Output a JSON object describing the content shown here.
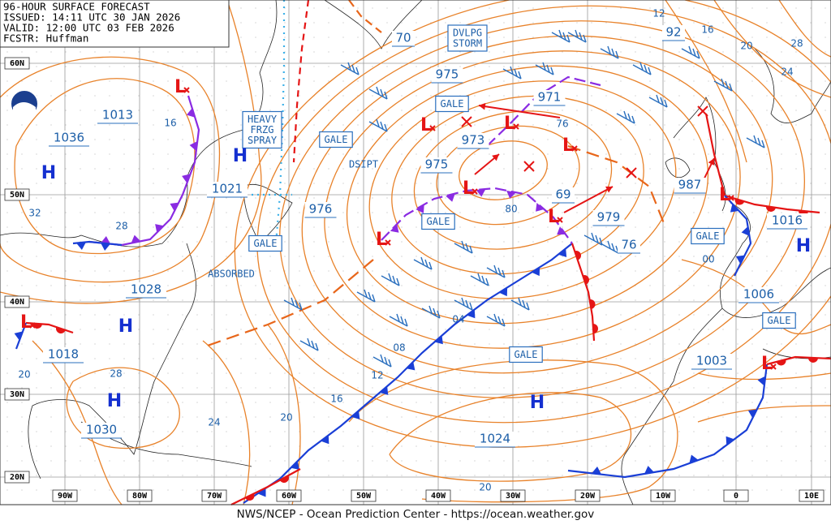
{
  "header": {
    "lines": [
      "96-HOUR SURFACE FORECAST",
      "ISSUED: 14:11 UTC 30 JAN 2026",
      "VALID: 12:00 UTC 03 FEB 2026",
      "FCSTR: Huffman"
    ]
  },
  "pressure_labels": [
    "1013",
    "1036",
    "1021",
    "976",
    "975",
    "973",
    "975",
    "971",
    "69",
    "979",
    "76",
    "987",
    "1016",
    "1006",
    "1003",
    "1024",
    "1030",
    "1018",
    "1028",
    "70",
    "92"
  ],
  "boxed_labels": [
    [
      "HEAVY",
      "FRZG",
      "SPRAY"
    ],
    [
      "DVLPG",
      "STORM"
    ],
    [
      "GALE"
    ],
    [
      "GALE"
    ],
    [
      "GALE"
    ],
    [
      "GALE"
    ],
    [
      "GALE"
    ],
    [
      "GALE"
    ],
    [
      "GALE"
    ]
  ],
  "notes": [
    "DSIPT",
    "ABSORBED"
  ],
  "isobar_labels": [
    "16",
    "32",
    "28",
    "20",
    "28",
    "24",
    "20",
    "16",
    "12",
    "08",
    "04",
    "80",
    "76",
    "00",
    "20",
    "12",
    "16",
    "20",
    "28",
    "24"
  ],
  "highs": [
    "H",
    "H",
    "H",
    "H",
    "H",
    "H"
  ],
  "lows": [
    "L",
    "L",
    "L",
    "L",
    "L",
    "L",
    "L",
    "L",
    "L",
    "L"
  ],
  "latitude_labels": [
    "60N",
    "50N",
    "40N",
    "30N",
    "20N"
  ],
  "longitude_labels": [
    "90W",
    "80W",
    "70W",
    "60W",
    "50W",
    "40W",
    "30W",
    "20W",
    "10W",
    "0",
    "10E"
  ],
  "footer": "NWS/NCEP - Ocean Prediction Center - https://ocean.weather.gov"
}
